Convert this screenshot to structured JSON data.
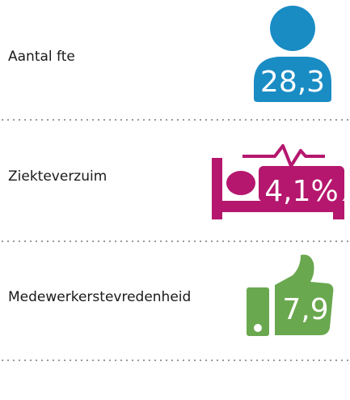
{
  "items": [
    {
      "label": "Aantal fte",
      "value": "28,3"
    },
    {
      "label": "Ziekteverzuim",
      "value": "4,1%"
    },
    {
      "label": "Medewerkerstevredenheid",
      "value": "7,9"
    }
  ]
}
